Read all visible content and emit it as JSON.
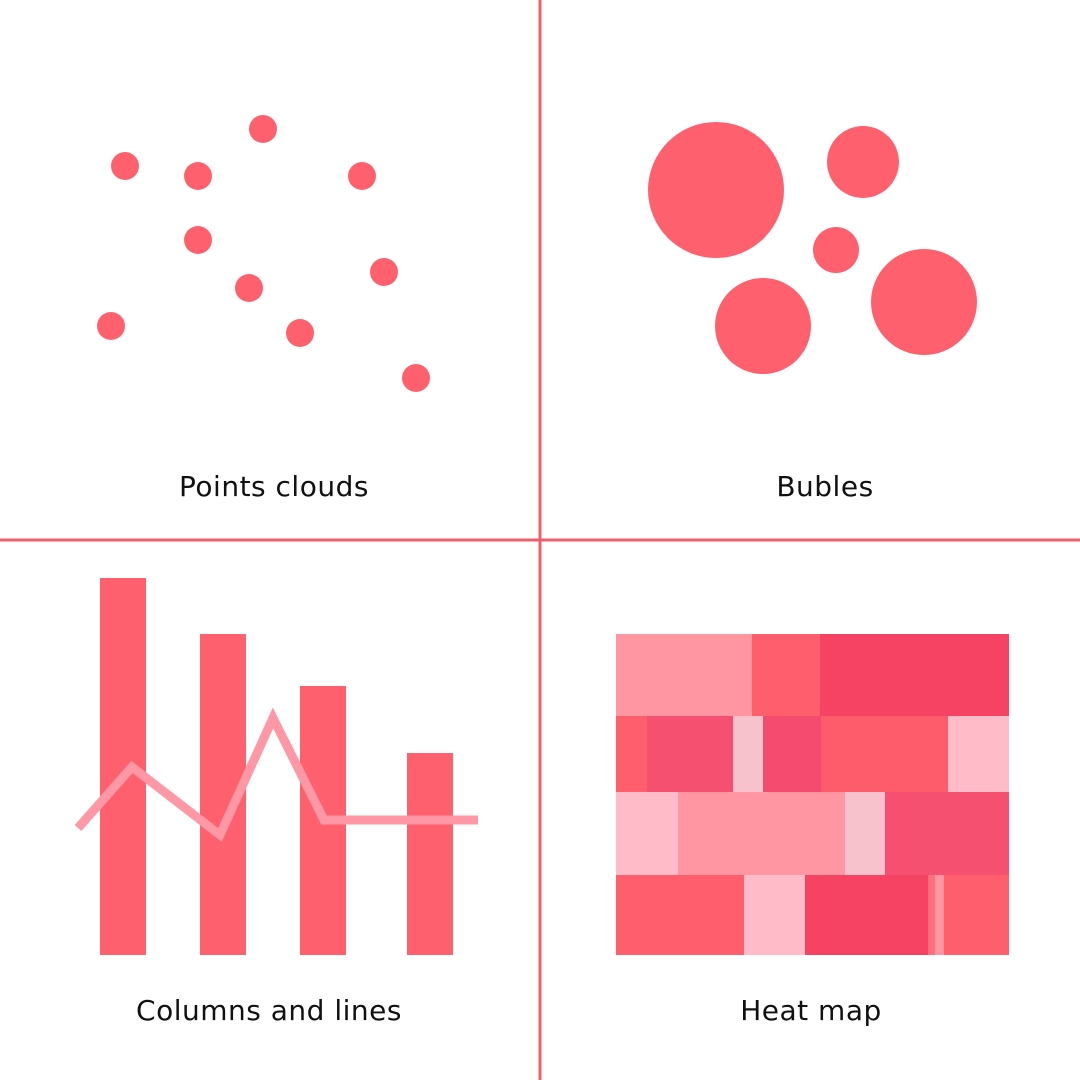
{
  "colors": {
    "divider": "#F0606C",
    "accent": "#FF606E",
    "line": "#FF98A4",
    "text": "#111111"
  },
  "panels": {
    "points_clouds": {
      "caption": "Points clouds"
    },
    "bubbles": {
      "caption": "Bubles"
    },
    "columns_and_lines": {
      "caption": "Columns and lines"
    },
    "heat_map": {
      "caption": "Heat map"
    }
  },
  "heat_map_cells": [
    {
      "row": 1,
      "color": "#FF96A2"
    },
    {
      "row": 1,
      "color": "#FF5E6D"
    },
    {
      "row": 1,
      "color": "#F64364"
    },
    {
      "row": 2,
      "color": "#FF5E6D"
    },
    {
      "row": 2,
      "color": "#F5506F"
    },
    {
      "row": 2,
      "color": "#F8C2CD"
    },
    {
      "row": 2,
      "color": "#F44B6E"
    },
    {
      "row": 2,
      "color": "#FF5C6B"
    },
    {
      "row": 2,
      "color": "#FFBCC8"
    },
    {
      "row": 3,
      "color": "#FFBCC8"
    },
    {
      "row": 3,
      "color": "#FF96A2"
    },
    {
      "row": 3,
      "color": "#F8C2CD"
    },
    {
      "row": 3,
      "color": "#F5506F"
    },
    {
      "row": 4,
      "color": "#FF5E6D"
    },
    {
      "row": 4,
      "color": "#FFBCC8"
    },
    {
      "row": 4,
      "color": "#F64364"
    },
    {
      "row": 4,
      "color": "#FF6F7C"
    },
    {
      "row": 4,
      "color": "#FF96A2"
    },
    {
      "row": 4,
      "color": "#FF5E6D"
    }
  ]
}
